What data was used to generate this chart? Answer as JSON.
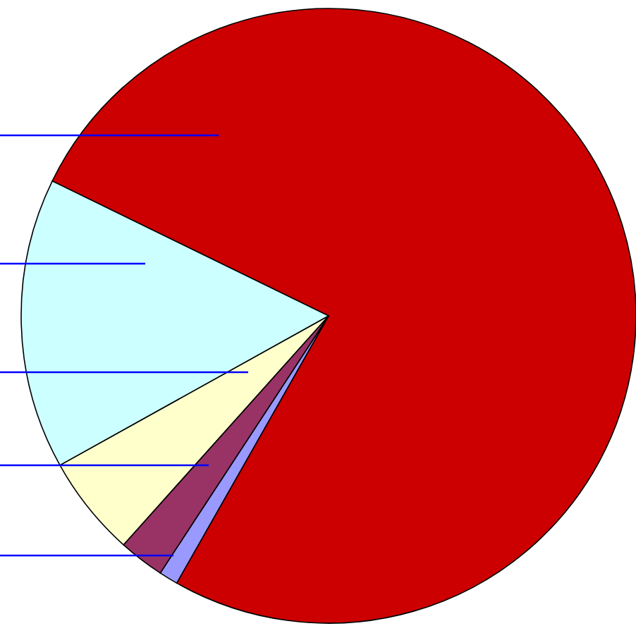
{
  "chart_data": {
    "type": "pie",
    "categories": [
      null,
      null,
      null,
      null,
      null
    ],
    "values": [
      76,
      1,
      2.4,
      5.3,
      15.3
    ],
    "colors": [
      "#cc0000",
      "#9999ff",
      "#993366",
      "#ffffcc",
      "#ccffff"
    ]
  }
}
